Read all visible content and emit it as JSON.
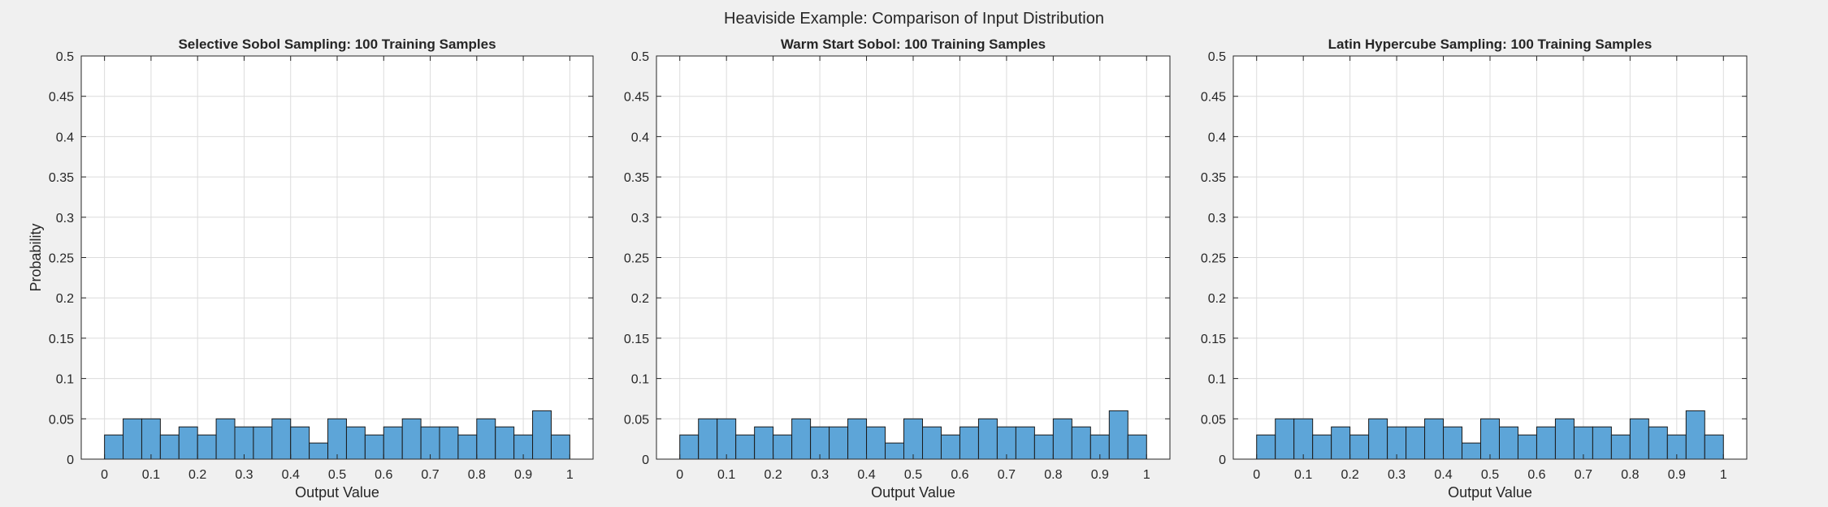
{
  "figure": {
    "title": "Heaviside Example: Comparison of Input Distribution",
    "background": "#f0f0f0"
  },
  "style": {
    "bar_fill": "#5da5d8",
    "bar_edge": "#1a1a1a",
    "grid_color": "#dcdcdc",
    "axes_color": "#262626"
  },
  "chart_data": [
    {
      "type": "bar",
      "title": "Selective Sobol Sampling: 100 Training Samples",
      "xlabel": "Output Value",
      "ylabel": "Probability",
      "xlim": [
        -0.05,
        1.05
      ],
      "ylim": [
        0,
        0.5
      ],
      "xticks": [
        0,
        0.1,
        0.2,
        0.3,
        0.4,
        0.5,
        0.6,
        0.7,
        0.8,
        0.9,
        1
      ],
      "xtick_labels": [
        "0",
        "0.1",
        "0.2",
        "0.3",
        "0.4",
        "0.5",
        "0.6",
        "0.7",
        "0.8",
        "0.9",
        "1"
      ],
      "yticks": [
        0,
        0.05,
        0.1,
        0.15,
        0.2,
        0.25,
        0.3,
        0.35,
        0.4,
        0.45,
        0.5
      ],
      "ytick_labels": [
        "0",
        "0.05",
        "0.1",
        "0.15",
        "0.2",
        "0.25",
        "0.3",
        "0.35",
        "0.4",
        "0.45",
        "0.5"
      ],
      "grid": true,
      "bin_edges": [
        0,
        0.04,
        0.08,
        0.12,
        0.16,
        0.2,
        0.24,
        0.28,
        0.32,
        0.36,
        0.4,
        0.44,
        0.48,
        0.52,
        0.56,
        0.6,
        0.64,
        0.68,
        0.72,
        0.76,
        0.8,
        0.84,
        0.88,
        0.92,
        0.96,
        1.0
      ],
      "values": [
        0.03,
        0.05,
        0.05,
        0.03,
        0.04,
        0.03,
        0.05,
        0.04,
        0.04,
        0.05,
        0.04,
        0.02,
        0.05,
        0.04,
        0.03,
        0.04,
        0.05,
        0.04,
        0.04,
        0.03,
        0.05,
        0.04,
        0.03,
        0.06,
        0.03
      ]
    },
    {
      "type": "bar",
      "title": "Warm Start Sobol: 100 Training Samples",
      "xlabel": "Output Value",
      "ylabel": "",
      "xlim": [
        -0.05,
        1.05
      ],
      "ylim": [
        0,
        0.5
      ],
      "xticks": [
        0,
        0.1,
        0.2,
        0.3,
        0.4,
        0.5,
        0.6,
        0.7,
        0.8,
        0.9,
        1
      ],
      "xtick_labels": [
        "0",
        "0.1",
        "0.2",
        "0.3",
        "0.4",
        "0.5",
        "0.6",
        "0.7",
        "0.8",
        "0.9",
        "1"
      ],
      "yticks": [
        0,
        0.05,
        0.1,
        0.15,
        0.2,
        0.25,
        0.3,
        0.35,
        0.4,
        0.45,
        0.5
      ],
      "ytick_labels": [
        "0",
        "0.05",
        "0.1",
        "0.15",
        "0.2",
        "0.25",
        "0.3",
        "0.35",
        "0.4",
        "0.45",
        "0.5"
      ],
      "grid": true,
      "bin_edges": [
        0,
        0.04,
        0.08,
        0.12,
        0.16,
        0.2,
        0.24,
        0.28,
        0.32,
        0.36,
        0.4,
        0.44,
        0.48,
        0.52,
        0.56,
        0.6,
        0.64,
        0.68,
        0.72,
        0.76,
        0.8,
        0.84,
        0.88,
        0.92,
        0.96,
        1.0
      ],
      "values": [
        0.03,
        0.05,
        0.05,
        0.03,
        0.04,
        0.03,
        0.05,
        0.04,
        0.04,
        0.05,
        0.04,
        0.02,
        0.05,
        0.04,
        0.03,
        0.04,
        0.05,
        0.04,
        0.04,
        0.03,
        0.05,
        0.04,
        0.03,
        0.06,
        0.03
      ]
    },
    {
      "type": "bar",
      "title": "Latin Hypercube Sampling: 100 Training Samples",
      "xlabel": "Output Value",
      "ylabel": "",
      "xlim": [
        -0.05,
        1.05
      ],
      "ylim": [
        0,
        0.5
      ],
      "xticks": [
        0,
        0.1,
        0.2,
        0.3,
        0.4,
        0.5,
        0.6,
        0.7,
        0.8,
        0.9,
        1
      ],
      "xtick_labels": [
        "0",
        "0.1",
        "0.2",
        "0.3",
        "0.4",
        "0.5",
        "0.6",
        "0.7",
        "0.8",
        "0.9",
        "1"
      ],
      "yticks": [
        0,
        0.05,
        0.1,
        0.15,
        0.2,
        0.25,
        0.3,
        0.35,
        0.4,
        0.45,
        0.5
      ],
      "ytick_labels": [
        "0",
        "0.05",
        "0.1",
        "0.15",
        "0.2",
        "0.25",
        "0.3",
        "0.35",
        "0.4",
        "0.45",
        "0.5"
      ],
      "grid": true,
      "bin_edges": [
        0,
        0.04,
        0.08,
        0.12,
        0.16,
        0.2,
        0.24,
        0.28,
        0.32,
        0.36,
        0.4,
        0.44,
        0.48,
        0.52,
        0.56,
        0.6,
        0.64,
        0.68,
        0.72,
        0.76,
        0.8,
        0.84,
        0.88,
        0.92,
        0.96,
        1.0
      ],
      "values": [
        0.03,
        0.05,
        0.05,
        0.03,
        0.04,
        0.03,
        0.05,
        0.04,
        0.04,
        0.05,
        0.04,
        0.02,
        0.05,
        0.04,
        0.03,
        0.04,
        0.05,
        0.04,
        0.04,
        0.03,
        0.05,
        0.04,
        0.03,
        0.06,
        0.03
      ]
    }
  ]
}
